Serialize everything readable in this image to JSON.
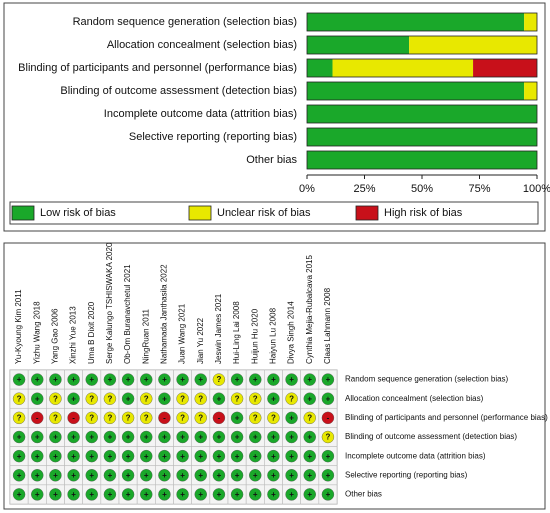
{
  "chart_data": [
    {
      "type": "bar",
      "orientation": "horizontal",
      "stacked": true,
      "categories": [
        "Random sequence generation (selection bias)",
        "Allocation concealment (selection bias)",
        "Blinding of participants and personnel (performance bias)",
        "Blinding of outcome assessment (detection bias)",
        "Incomplete outcome data (attrition bias)",
        "Selective reporting (reporting bias)",
        "Other bias"
      ],
      "series": [
        {
          "name": "Low risk of bias",
          "color": "#1aa82a",
          "values": [
            94.4,
            44.4,
            11.1,
            94.4,
            100,
            100,
            100
          ]
        },
        {
          "name": "Unclear risk of bias",
          "color": "#e8e800",
          "values": [
            5.6,
            55.6,
            61.1,
            5.6,
            0,
            0,
            0
          ]
        },
        {
          "name": "High risk of bias",
          "color": "#c8101a",
          "values": [
            0,
            0,
            27.8,
            0,
            0,
            0,
            0
          ]
        }
      ],
      "xlim": [
        0,
        100
      ],
      "xticks": [
        {
          "value": 0,
          "label": "0%"
        },
        {
          "value": 25,
          "label": "25%"
        },
        {
          "value": 50,
          "label": "50%"
        },
        {
          "value": 75,
          "label": "75%"
        },
        {
          "value": 100,
          "label": "100%"
        }
      ],
      "legend": "bottom"
    },
    {
      "type": "traffic-light",
      "studies": [
        "Yu-Kyoung Kim 2011",
        "Yizhu Wang 2018",
        "Yang Gao 2006",
        "Xinzhi Yue 2013",
        "Uma B Dixit 2020",
        "Serge Kalungo TSHISWAKA 2020",
        "Ob-Om Buranavchetul 2021",
        "NingRuan 2011",
        "Nathamada Janthasila 2022",
        "Juan Wang 2021",
        "Jian Yu 2022",
        "Jeswin James 2021",
        "Hui-Ling Lai 2008",
        "Huijun Hu 2020",
        "Haiyun Lu 2008",
        "Divya Singh 2014",
        "Cynthia Mejia-Rubalcava 2015",
        "Claas Lahmann 2008"
      ],
      "judgements": [
        [
          "+",
          "+",
          "+",
          "+",
          "+",
          "+",
          "+",
          "+",
          "+",
          "+",
          "+",
          "?",
          "+",
          "+",
          "+",
          "+",
          "+",
          "+"
        ],
        [
          "?",
          "+",
          "?",
          "+",
          "?",
          "?",
          "+",
          "?",
          "+",
          "?",
          "?",
          "+",
          "?",
          "?",
          "+",
          "?",
          "+",
          "+"
        ],
        [
          "?",
          "-",
          "?",
          "-",
          "?",
          "?",
          "?",
          "?",
          "-",
          "?",
          "?",
          "-",
          "+",
          "?",
          "?",
          "+",
          "?",
          "-"
        ],
        [
          "+",
          "+",
          "+",
          "+",
          "+",
          "+",
          "+",
          "+",
          "+",
          "+",
          "+",
          "+",
          "+",
          "+",
          "+",
          "+",
          "+",
          "?"
        ],
        [
          "+",
          "+",
          "+",
          "+",
          "+",
          "+",
          "+",
          "+",
          "+",
          "+",
          "+",
          "+",
          "+",
          "+",
          "+",
          "+",
          "+",
          "+"
        ],
        [
          "+",
          "+",
          "+",
          "+",
          "+",
          "+",
          "+",
          "+",
          "+",
          "+",
          "+",
          "+",
          "+",
          "+",
          "+",
          "+",
          "+",
          "+"
        ],
        [
          "+",
          "+",
          "+",
          "+",
          "+",
          "+",
          "+",
          "+",
          "+",
          "+",
          "+",
          "+",
          "+",
          "+",
          "+",
          "+",
          "+",
          "+"
        ]
      ],
      "colors": {
        "+": "#1aa82a",
        "?": "#e8e800",
        "-": "#c8101a"
      }
    }
  ]
}
